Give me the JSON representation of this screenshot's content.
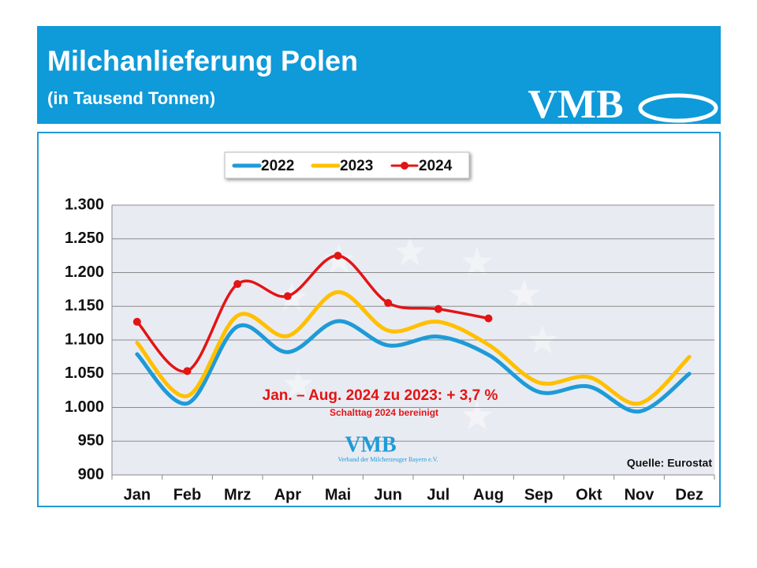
{
  "header": {
    "title": "Milchanlieferung Polen",
    "subtitle": "(in Tausend Tonnen)",
    "logo": "VMB"
  },
  "chart_data": {
    "type": "line",
    "categories": [
      "Jan",
      "Feb",
      "Mrz",
      "Apr",
      "Mai",
      "Jun",
      "Jul",
      "Aug",
      "Sep",
      "Okt",
      "Nov",
      "Dez"
    ],
    "series": [
      {
        "name": "2022",
        "color": "#1e9bd7",
        "values": [
          1079,
          1006,
          1120,
          1082,
          1128,
          1092,
          1105,
          1078,
          1023,
          1031,
          994,
          1050
        ]
      },
      {
        "name": "2023",
        "color": "#ffc000",
        "values": [
          1096,
          1017,
          1136,
          1106,
          1171,
          1114,
          1127,
          1093,
          1037,
          1045,
          1006,
          1075
        ]
      },
      {
        "name": "2024",
        "color": "#e31414",
        "markers": true,
        "values": [
          1127,
          1054,
          1183,
          1165,
          1225,
          1155,
          1146,
          1132,
          null,
          null,
          null,
          null
        ]
      }
    ],
    "ylim": [
      900,
      1300
    ],
    "yticks": [
      {
        "value": 900,
        "label": "900"
      },
      {
        "value": 950,
        "label": "950"
      },
      {
        "value": 1000,
        "label": "1.000"
      },
      {
        "value": 1050,
        "label": "1.050"
      },
      {
        "value": 1100,
        "label": "1.100"
      },
      {
        "value": 1150,
        "label": "1.150"
      },
      {
        "value": 1200,
        "label": "1.200"
      },
      {
        "value": 1250,
        "label": "1.250"
      },
      {
        "value": 1300,
        "label": "1.300"
      }
    ],
    "grid": true,
    "annotations": [
      "Jan. – Aug. 2024 zu 2023: + 3,7 %",
      "Schalttag 2024 bereinigt"
    ],
    "source": "Quelle: Eurostat",
    "watermark": {
      "logo": "VMB",
      "text": "Verband der Milcherzeuger Bayern e.V."
    }
  }
}
